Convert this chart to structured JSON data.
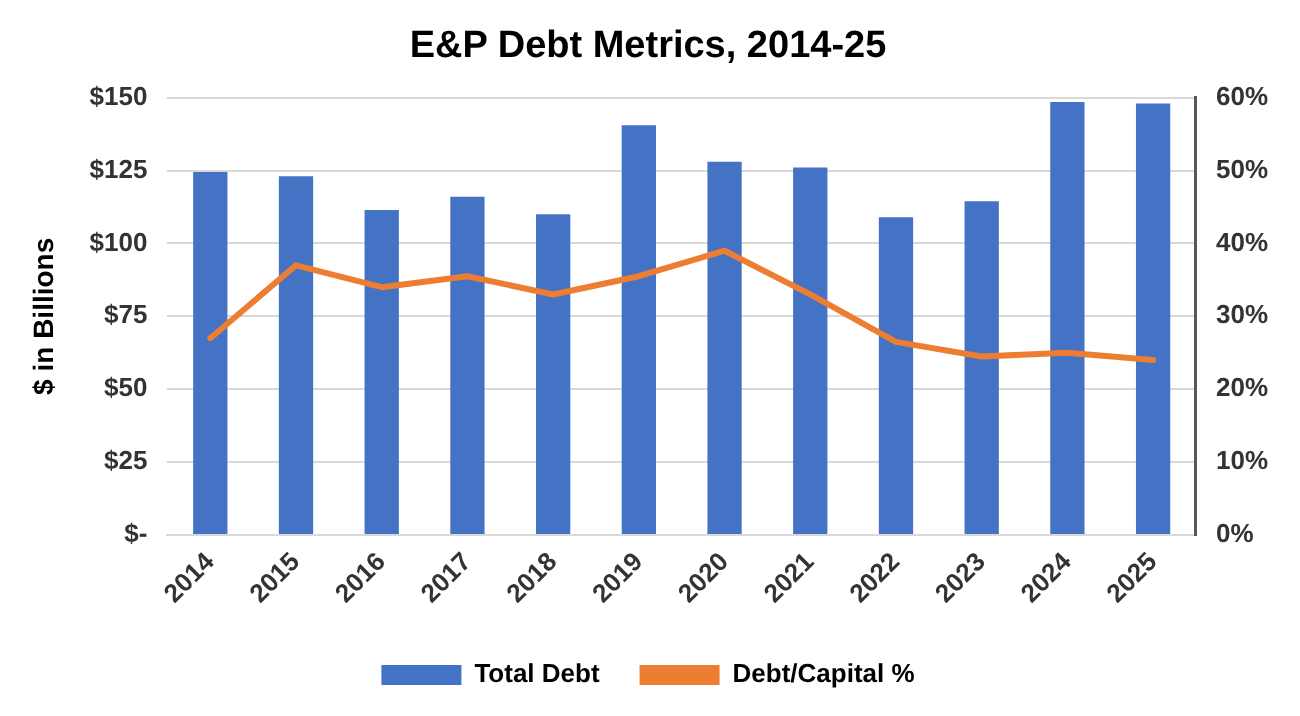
{
  "chart_data": {
    "type": "bar",
    "title": "E&P Debt Metrics, 2014-25",
    "ylabel": "$ in Billions",
    "categories": [
      "2014",
      "2015",
      "2016",
      "2017",
      "2018",
      "2019",
      "2020",
      "2021",
      "2022",
      "2023",
      "2024",
      "2025"
    ],
    "series": [
      {
        "name": "Total Debt",
        "color": "#4472c4",
        "values": [
          124.5,
          123,
          111.5,
          116,
          110,
          140.5,
          128,
          126,
          109,
          114.5,
          148.5,
          148
        ]
      },
      {
        "name": "Debt/Capital %",
        "type": "line",
        "axis": "y2",
        "color": "#ed7d31",
        "values": [
          27,
          37,
          34,
          35.5,
          33,
          35.5,
          39,
          33,
          26.5,
          24.5,
          25,
          24
        ]
      }
    ],
    "ylim": [
      0,
      150
    ],
    "yticks": [
      {
        "value": 0,
        "label": "$-"
      },
      {
        "value": 25,
        "label": "$25"
      },
      {
        "value": 50,
        "label": "$50"
      },
      {
        "value": 75,
        "label": "$75"
      },
      {
        "value": 100,
        "label": "$100"
      },
      {
        "value": 125,
        "label": "$125"
      },
      {
        "value": 150,
        "label": "$150"
      }
    ],
    "y2lim": [
      0,
      60
    ],
    "y2ticks": [
      {
        "value": 0,
        "label": "0%"
      },
      {
        "value": 10,
        "label": "10%"
      },
      {
        "value": 20,
        "label": "20%"
      },
      {
        "value": 30,
        "label": "30%"
      },
      {
        "value": 40,
        "label": "40%"
      },
      {
        "value": 50,
        "label": "50%"
      },
      {
        "value": 60,
        "label": "60%"
      }
    ],
    "grid": "y",
    "legend": "bottom",
    "marker": "none",
    "line_style": "solid"
  }
}
